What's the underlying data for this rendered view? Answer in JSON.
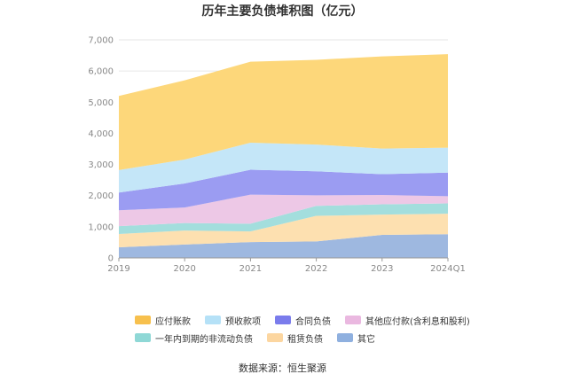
{
  "chart_data": {
    "type": "area",
    "stacked": true,
    "title": "历年主要负债堆积图（亿元）",
    "categories": [
      "2019",
      "2020",
      "2021",
      "2022",
      "2023",
      "2024Q1"
    ],
    "y_ticks": [
      "0",
      "1,000",
      "2,000",
      "3,000",
      "4,000",
      "5,000",
      "6,000",
      "7,000"
    ],
    "ylim": [
      0,
      7000
    ],
    "series": [
      {
        "name": "其它",
        "color": "#9eb8e0",
        "values": [
          340,
          430,
          510,
          530,
          740,
          760
        ]
      },
      {
        "name": "租赁负债",
        "color": "#fde0b0",
        "values": [
          430,
          450,
          340,
          820,
          650,
          660
        ]
      },
      {
        "name": "一年内到期的非流动负债",
        "color": "#a3dedd",
        "values": [
          250,
          240,
          250,
          320,
          330,
          330
        ]
      },
      {
        "name": "其他应付款(含利息和股利)",
        "color": "#edc8e6",
        "values": [
          510,
          500,
          930,
          340,
          300,
          230
        ]
      },
      {
        "name": "合同负债",
        "color": "#9b9cf2",
        "values": [
          570,
          770,
          800,
          770,
          670,
          760
        ]
      },
      {
        "name": "预收款项",
        "color": "#c4e6f8",
        "values": [
          720,
          770,
          870,
          860,
          820,
          800
        ]
      },
      {
        "name": "应付账款",
        "color": "#fdd77a",
        "values": [
          2380,
          2540,
          2600,
          2720,
          2960,
          3000
        ]
      }
    ],
    "legend": [
      {
        "name": "应付账款",
        "color": "#f7c04d"
      },
      {
        "name": "预收款项",
        "color": "#b5e1f7"
      },
      {
        "name": "合同负债",
        "color": "#7a7cec"
      },
      {
        "name": "其他应付款(含利息和股利)",
        "color": "#eab8e0"
      },
      {
        "name": "一年内到期的非流动负债",
        "color": "#8fd8d6"
      },
      {
        "name": "租赁负债",
        "color": "#fcd6a0"
      },
      {
        "name": "其它",
        "color": "#8fb0df"
      }
    ],
    "source": "数据来源：恒生聚源"
  }
}
